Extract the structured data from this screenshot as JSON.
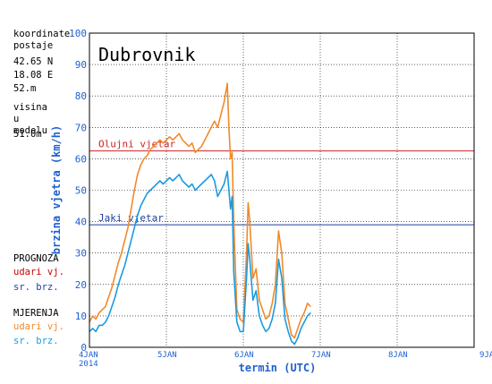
{
  "station": {
    "coords_header": "koordinate postaje",
    "lat": "42.65 N",
    "lon": "18.08 E",
    "altitude": "52.m",
    "model_header": "visina u modelu",
    "model_altitude": "51.0m"
  },
  "legend": {
    "forecast_title": "PROGNOZA",
    "forecast_gust": "udari vj.",
    "forecast_mean": "sr. brz.",
    "measured_title": "MJERENJA",
    "measured_gust": "udari vj.",
    "measured_mean": "sr. brz."
  },
  "colors": {
    "forecast_gust": "#cc0000",
    "forecast_mean": "#1f3f9f",
    "measured_gust": "#f08a2a",
    "measured_mean": "#1b9bdf",
    "storm_line": "#cc2222",
    "strong_line": "#1f3f9f",
    "grid": "#000000"
  },
  "chart_data": {
    "type": "line",
    "title": "Dubrovnik",
    "xlabel": "termin (UTC)",
    "ylabel": "brzina vjetra (km/h)",
    "ylim": [
      0,
      100
    ],
    "yticks": [
      0,
      10,
      20,
      30,
      40,
      50,
      60,
      70,
      80,
      90,
      100
    ],
    "xlim_hours": [
      0,
      120
    ],
    "xticks": [
      {
        "hour": 0,
        "label": "4JAN",
        "sublabel": "2014"
      },
      {
        "hour": 24,
        "label": "5JAN",
        "sublabel": ""
      },
      {
        "hour": 48,
        "label": "6JAN",
        "sublabel": ""
      },
      {
        "hour": 72,
        "label": "7JAN",
        "sublabel": ""
      },
      {
        "hour": 96,
        "label": "8JAN",
        "sublabel": ""
      },
      {
        "hour": 120,
        "label": "9JAN",
        "sublabel": ""
      }
    ],
    "grid": "dotted",
    "thresholds": [
      {
        "name": "Olujni vjetar",
        "value": 62.5
      },
      {
        "name": "Jaki vjetar",
        "value": 39
      }
    ],
    "series": [
      {
        "name": "udari vj.",
        "x": [
          0,
          1,
          2,
          3,
          4,
          5,
          6,
          7,
          8,
          9,
          10,
          11,
          12,
          13,
          14,
          15,
          16,
          17,
          18,
          19,
          20,
          21,
          22,
          23,
          24,
          25,
          26,
          27,
          28,
          29,
          30,
          31,
          32,
          33,
          34,
          35,
          36,
          37,
          38,
          39,
          40,
          41,
          42,
          43,
          43.5,
          44,
          44.5,
          45,
          46,
          47,
          48,
          49,
          49.5,
          50,
          51,
          52,
          53,
          54,
          55,
          56,
          57,
          58,
          59,
          60,
          61,
          62,
          63,
          64,
          65,
          66,
          67,
          68,
          69
        ],
        "values": [
          8,
          10,
          9,
          11,
          12,
          13,
          16,
          19,
          23,
          27,
          30,
          34,
          38,
          44,
          50,
          55,
          58,
          60,
          61,
          63,
          64,
          65,
          66,
          65,
          66,
          67,
          66,
          67,
          68,
          66,
          65,
          64,
          65,
          62,
          63,
          64,
          66,
          68,
          70,
          72,
          70,
          74,
          78,
          84,
          70,
          60,
          62,
          40,
          12,
          9,
          8,
          30,
          46,
          40,
          22,
          25,
          15,
          12,
          9,
          10,
          14,
          20,
          37,
          30,
          14,
          9,
          4,
          3,
          6,
          9,
          11,
          14,
          13
        ]
      },
      {
        "name": "sr. brz.",
        "x": [
          0,
          1,
          2,
          3,
          4,
          5,
          6,
          7,
          8,
          9,
          10,
          11,
          12,
          13,
          14,
          15,
          16,
          17,
          18,
          19,
          20,
          21,
          22,
          23,
          24,
          25,
          26,
          27,
          28,
          29,
          30,
          31,
          32,
          33,
          34,
          35,
          36,
          37,
          38,
          39,
          40,
          41,
          42,
          43,
          43.5,
          44,
          44.5,
          45,
          46,
          47,
          48,
          49,
          49.5,
          50,
          51,
          52,
          53,
          54,
          55,
          56,
          57,
          58,
          59,
          60,
          61,
          62,
          63,
          64,
          65,
          66,
          67,
          68,
          69
        ],
        "values": [
          5,
          6,
          5,
          7,
          7,
          8,
          10,
          13,
          16,
          20,
          23,
          26,
          30,
          34,
          38,
          42,
          45,
          47,
          49,
          50,
          51,
          52,
          53,
          52,
          53,
          54,
          53,
          54,
          55,
          53,
          52,
          51,
          52,
          50,
          51,
          52,
          53,
          54,
          55,
          53,
          48,
          50,
          52,
          56,
          50,
          44,
          48,
          24,
          8,
          5,
          5,
          22,
          33,
          28,
          15,
          18,
          10,
          7,
          5,
          6,
          9,
          14,
          28,
          22,
          9,
          5,
          2,
          1,
          3,
          6,
          8,
          10,
          11
        ]
      }
    ]
  }
}
